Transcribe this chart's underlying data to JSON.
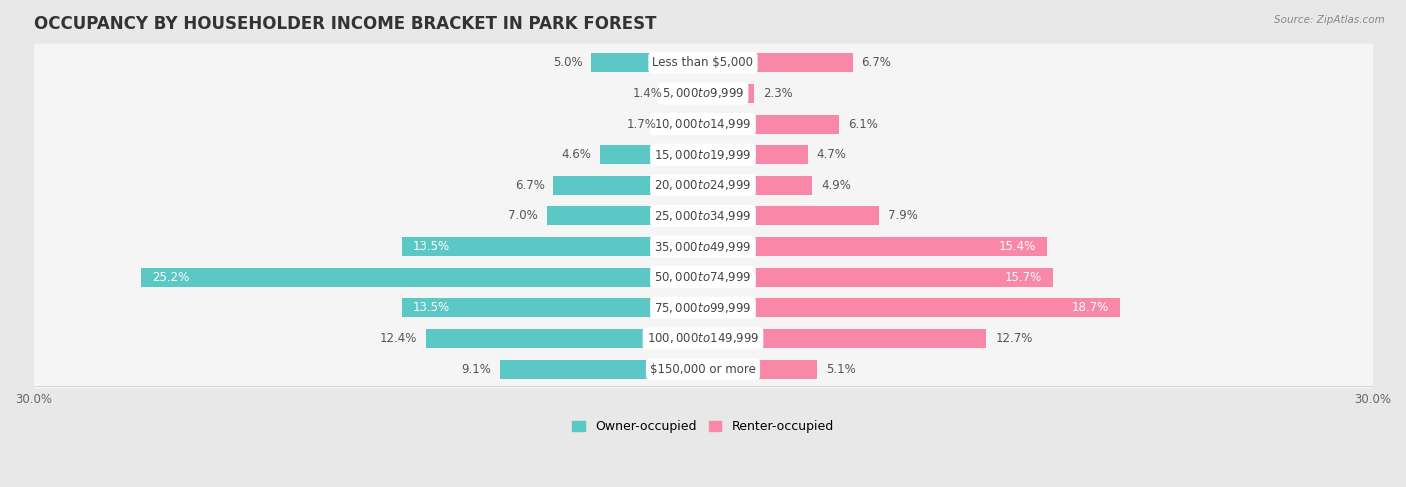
{
  "title": "OCCUPANCY BY HOUSEHOLDER INCOME BRACKET IN PARK FOREST",
  "source": "Source: ZipAtlas.com",
  "categories": [
    "Less than $5,000",
    "$5,000 to $9,999",
    "$10,000 to $14,999",
    "$15,000 to $19,999",
    "$20,000 to $24,999",
    "$25,000 to $34,999",
    "$35,000 to $49,999",
    "$50,000 to $74,999",
    "$75,000 to $99,999",
    "$100,000 to $149,999",
    "$150,000 or more"
  ],
  "owner_values": [
    5.0,
    1.4,
    1.7,
    4.6,
    6.7,
    7.0,
    13.5,
    25.2,
    13.5,
    12.4,
    9.1
  ],
  "renter_values": [
    6.7,
    2.3,
    6.1,
    4.7,
    4.9,
    7.9,
    15.4,
    15.7,
    18.7,
    12.7,
    5.1
  ],
  "owner_color": "#5BC8C5",
  "renter_color": "#F887A8",
  "background_color": "#e8e8e8",
  "bar_row_color": "#f5f5f5",
  "xlim": 30.0,
  "bar_height": 0.62,
  "title_fontsize": 12,
  "label_fontsize": 8.5,
  "cat_fontsize": 8.5,
  "tick_fontsize": 8.5,
  "legend_fontsize": 9
}
